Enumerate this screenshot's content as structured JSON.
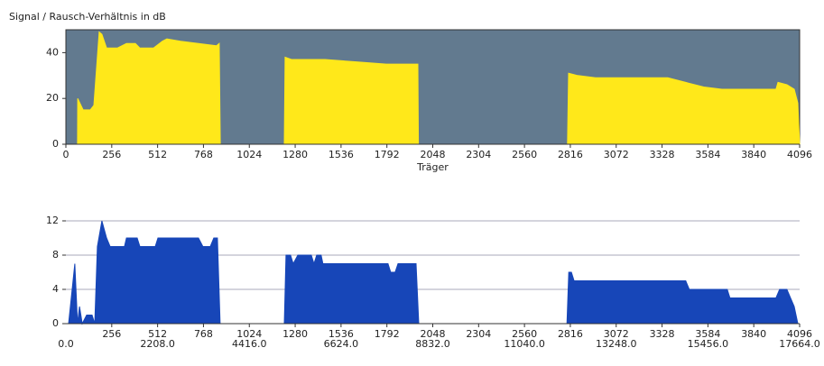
{
  "chart_data": [
    {
      "type": "area",
      "title": "Signal / Rausch-Verhältnis in dB",
      "x_label": "Träger",
      "color": "#ffe81a",
      "background": "#627a8f",
      "grid": false,
      "x": [
        65,
        66,
        96,
        136,
        156,
        186,
        201,
        227,
        287,
        338,
        388,
        413,
        489,
        539,
        564,
        640,
        740,
        841,
        856,
        862,
        1219,
        1224,
        1259,
        1446,
        1622,
        1789,
        1884,
        1965,
        1968,
        2800,
        2806,
        2857,
        2957,
        3360,
        3460,
        3561,
        3662,
        3964,
        3975,
        4025,
        4066,
        4086,
        4096
      ],
      "values": [
        0,
        20,
        15,
        15,
        17,
        49,
        48,
        42,
        42,
        44,
        44,
        42,
        42,
        45,
        46,
        45,
        44,
        43,
        44,
        0,
        0,
        38,
        37,
        37,
        36,
        35,
        35,
        35,
        0,
        0,
        31,
        30,
        29,
        29,
        27,
        25,
        24,
        24,
        27,
        26,
        24,
        18,
        0
      ],
      "xlim": [
        0,
        4096
      ],
      "xticks": [
        0,
        256,
        512,
        768,
        1024,
        1280,
        1536,
        1792,
        2048,
        2304,
        2560,
        2816,
        3072,
        3328,
        3584,
        3840,
        4096
      ],
      "ylim": [
        0,
        50
      ],
      "yticks": [
        0,
        20,
        40
      ]
    },
    {
      "type": "area",
      "color": "#1746b8",
      "grid": true,
      "x": [
        0,
        15,
        50,
        65,
        76,
        91,
        116,
        146,
        161,
        176,
        201,
        227,
        247,
        327,
        338,
        398,
        413,
        499,
        514,
        740,
        765,
        806,
        826,
        846,
        861,
        1219,
        1229,
        1254,
        1269,
        1295,
        1370,
        1385,
        1400,
        1425,
        1435,
        1798,
        1813,
        1838,
        1854,
        1955,
        1970,
        2797,
        2807,
        2822,
        2837,
        3460,
        3480,
        3692,
        3707,
        3964,
        3984,
        4025,
        4045,
        4066,
        4086,
        4096
      ],
      "values": [
        0,
        0,
        7,
        0,
        2,
        0,
        1,
        1,
        0,
        9,
        12,
        10,
        9,
        9,
        10,
        10,
        9,
        9,
        10,
        10,
        9,
        9,
        10,
        10,
        0,
        0,
        8,
        8,
        7,
        8,
        8,
        7,
        8,
        8,
        7,
        7,
        6,
        6,
        7,
        7,
        0,
        0,
        6,
        6,
        5,
        5,
        4,
        4,
        3,
        3,
        4,
        4,
        3,
        2,
        0,
        0
      ],
      "xlim": [
        0,
        4096
      ],
      "xticks": [
        256,
        512,
        768,
        1024,
        1280,
        1536,
        1792,
        2048,
        2304,
        2560,
        2816,
        3072,
        3328,
        3584,
        3840,
        4096
      ],
      "x2lim": [
        0,
        17664
      ],
      "x2ticks": [
        {
          "value": 0,
          "label": "0.0"
        },
        {
          "value": 2208,
          "label": "2208.0"
        },
        {
          "value": 4416,
          "label": "4416.0"
        },
        {
          "value": 6624,
          "label": "6624.0"
        },
        {
          "value": 8832,
          "label": "8832.0"
        },
        {
          "value": 11040,
          "label": "11040.0"
        },
        {
          "value": 13248,
          "label": "13248.0"
        },
        {
          "value": 15456,
          "label": "15456.0"
        },
        {
          "value": 17664,
          "label": "17664.0"
        }
      ],
      "ylim": [
        0,
        12
      ],
      "yticks": [
        0,
        4,
        8,
        12
      ]
    }
  ]
}
